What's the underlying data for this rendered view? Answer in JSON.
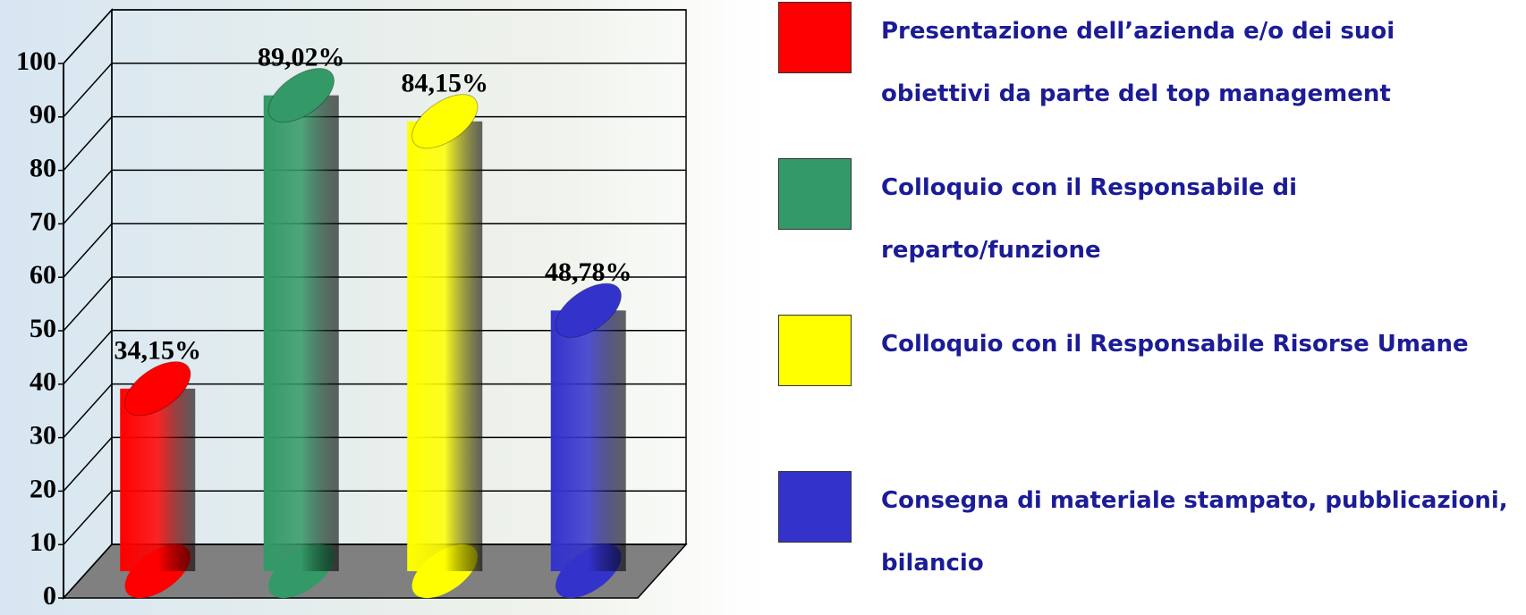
{
  "chart_data": {
    "type": "bar",
    "categories": [
      "Presentazione dell’azienda e/o dei suoi obiettivi da parte del top management",
      "Colloquio con il Responsabile di reparto/funzione",
      "Colloquio con il Responsabile Risorse Umane",
      "Consegna di materiale stampato, pubblicazioni, bilancio"
    ],
    "values": [
      34.15,
      89.02,
      84.15,
      48.78
    ],
    "value_labels": [
      "34,15%",
      "89,02%",
      "84,15%",
      "48,78%"
    ],
    "colors": [
      "#ff0000",
      "#339966",
      "#ffff00",
      "#3333cc"
    ],
    "ylim": [
      0,
      100
    ],
    "yticks": [
      0,
      10,
      20,
      30,
      40,
      50,
      60,
      70,
      80,
      90,
      100
    ],
    "grid": true
  }
}
